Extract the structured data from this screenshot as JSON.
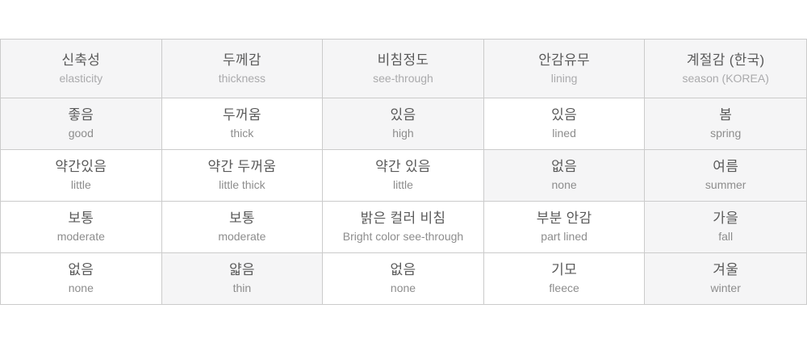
{
  "colors": {
    "border": "#cbcbcb",
    "shaded_cell_bg": "#f5f5f6",
    "korean_text": "#5a5a5a",
    "english_header_text": "#aaaaac",
    "english_body_text": "#8d8d8d"
  },
  "spec_table": {
    "columns": [
      {
        "ko": "신축성",
        "en": "elasticity"
      },
      {
        "ko": "두께감",
        "en": "thickness"
      },
      {
        "ko": "비침정도",
        "en": "see-through"
      },
      {
        "ko": "안감유무",
        "en": "lining"
      },
      {
        "ko": "계절감 (한국)",
        "en": "season (KOREA)"
      }
    ],
    "rows": [
      [
        {
          "ko": "좋음",
          "en": "good",
          "shaded": true
        },
        {
          "ko": "두꺼움",
          "en": "thick",
          "shaded": false
        },
        {
          "ko": "있음",
          "en": "high",
          "shaded": true
        },
        {
          "ko": "있음",
          "en": "lined",
          "shaded": false
        },
        {
          "ko": "봄",
          "en": "spring",
          "shaded": true
        }
      ],
      [
        {
          "ko": "약간있음",
          "en": "little",
          "shaded": false
        },
        {
          "ko": "약간 두꺼움",
          "en": "little thick",
          "shaded": false
        },
        {
          "ko": "약간 있음",
          "en": "little",
          "shaded": false
        },
        {
          "ko": "없음",
          "en": "none",
          "shaded": true
        },
        {
          "ko": "여름",
          "en": "summer",
          "shaded": true
        }
      ],
      [
        {
          "ko": "보통",
          "en": "moderate",
          "shaded": false
        },
        {
          "ko": "보통",
          "en": "moderate",
          "shaded": false
        },
        {
          "ko": "밝은 컬러 비침",
          "en": "Bright color see-through",
          "shaded": false
        },
        {
          "ko": "부분 안감",
          "en": "part lined",
          "shaded": false
        },
        {
          "ko": "가을",
          "en": "fall",
          "shaded": true
        }
      ],
      [
        {
          "ko": "없음",
          "en": "none",
          "shaded": false
        },
        {
          "ko": "얇음",
          "en": "thin",
          "shaded": true
        },
        {
          "ko": "없음",
          "en": "none",
          "shaded": false
        },
        {
          "ko": "기모",
          "en": "fleece",
          "shaded": false
        },
        {
          "ko": "겨울",
          "en": "winter",
          "shaded": true
        }
      ]
    ]
  }
}
